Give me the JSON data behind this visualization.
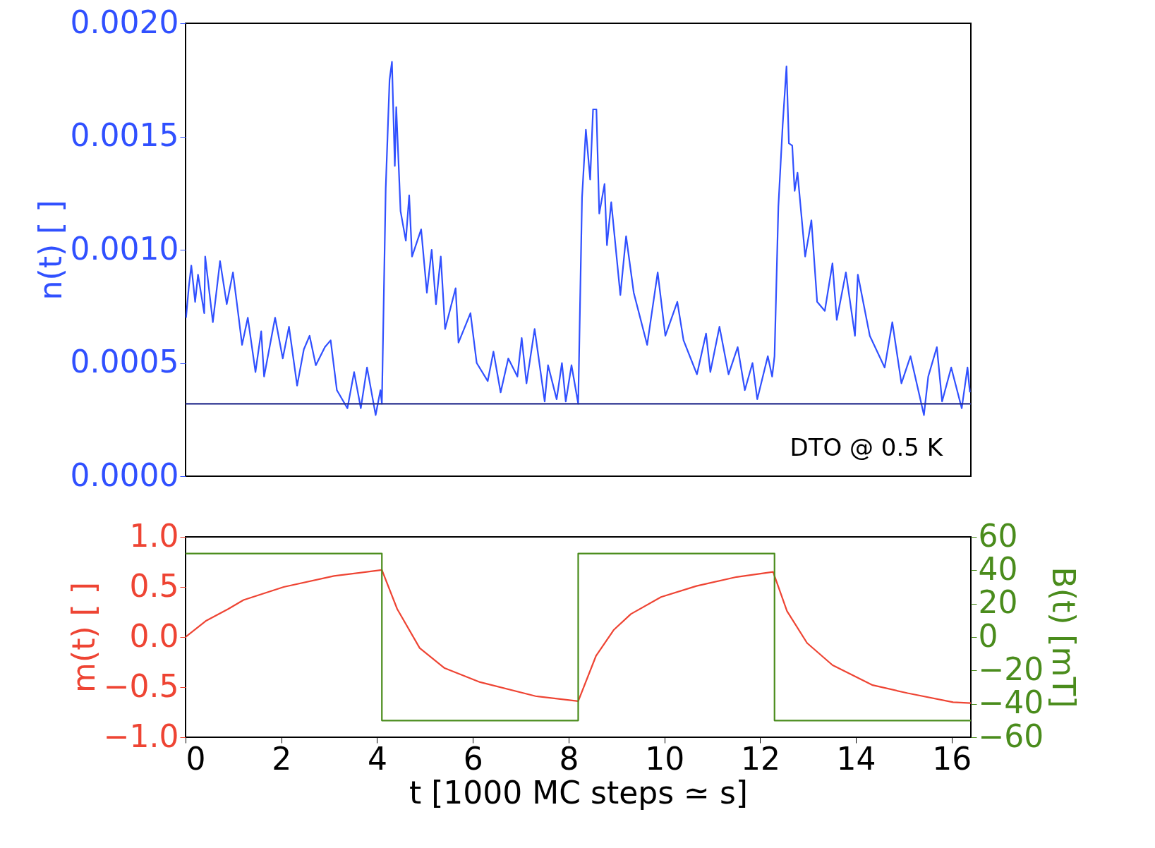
{
  "chart_data": [
    {
      "type": "line",
      "ylabel": "n(t) [ ]",
      "tick_labels": "y",
      "x": [
        0.01,
        0.07,
        0.12,
        0.2,
        0.26,
        0.39,
        0.41,
        0.57,
        0.72,
        0.86,
        0.99,
        1.11,
        1.18,
        1.3,
        1.46,
        1.58,
        1.64,
        1.87,
        2.03,
        2.16,
        2.33,
        2.47,
        2.59,
        2.72,
        2.91,
        3.03,
        3.16,
        3.38,
        3.52,
        3.66,
        3.79,
        3.97,
        4.07,
        4.1,
        4.18,
        4.26,
        4.31,
        4.37,
        4.4,
        4.49,
        4.6,
        4.67,
        4.73,
        4.92,
        5.04,
        5.14,
        5.23,
        5.33,
        5.42,
        5.64,
        5.7,
        5.95,
        6.08,
        6.31,
        6.43,
        6.58,
        6.74,
        6.93,
        7.02,
        7.12,
        7.29,
        7.5,
        7.57,
        7.75,
        7.86,
        7.94,
        8.06,
        8.2,
        8.28,
        8.36,
        8.45,
        8.51,
        8.58,
        8.64,
        8.75,
        8.8,
        8.89,
        9.08,
        9.2,
        9.36,
        9.64,
        9.86,
        10.02,
        10.27,
        10.4,
        10.68,
        10.87,
        10.96,
        11.15,
        11.34,
        11.53,
        11.68,
        11.84,
        11.94,
        12.16,
        12.25,
        12.3,
        12.38,
        12.47,
        12.55,
        12.6,
        12.67,
        12.72,
        12.78,
        12.94,
        13.07,
        13.19,
        13.35,
        13.51,
        13.6,
        13.79,
        13.98,
        14.04,
        14.29,
        14.6,
        14.76,
        14.95,
        15.14,
        15.42,
        15.51,
        15.69,
        15.8,
        15.99,
        16.21,
        16.33,
        16.38
      ],
      "series": [
        {
          "color": "#3050ff",
          "values": [
            0.0007,
            0.00084,
            0.00093,
            0.00077,
            0.00089,
            0.00072,
            0.00097,
            0.00068,
            0.00095,
            0.00076,
            0.0009,
            0.0007,
            0.00058,
            0.0007,
            0.00046,
            0.00064,
            0.00044,
            0.0007,
            0.00052,
            0.00066,
            0.0004,
            0.00056,
            0.00062,
            0.00049,
            0.00057,
            0.0006,
            0.00038,
            0.0003,
            0.00046,
            0.0003,
            0.00048,
            0.00027,
            0.00038,
            0.00032,
            0.00127,
            0.00175,
            0.00183,
            0.00137,
            0.00163,
            0.00117,
            0.00104,
            0.00124,
            0.00097,
            0.00109,
            0.00081,
            0.001,
            0.00076,
            0.00097,
            0.00065,
            0.00083,
            0.00059,
            0.00072,
            0.0005,
            0.00042,
            0.00055,
            0.00037,
            0.00052,
            0.00044,
            0.00061,
            0.00041,
            0.00065,
            0.00033,
            0.00049,
            0.00034,
            0.0005,
            0.00033,
            0.00049,
            0.00032,
            0.00123,
            0.00153,
            0.00131,
            0.00162,
            0.00162,
            0.00116,
            0.00129,
            0.00102,
            0.00121,
            0.0008,
            0.00106,
            0.00081,
            0.00058,
            0.0009,
            0.00062,
            0.00077,
            0.0006,
            0.00045,
            0.00063,
            0.00046,
            0.00066,
            0.00045,
            0.00057,
            0.00038,
            0.0005,
            0.00034,
            0.00053,
            0.00044,
            0.00053,
            0.00119,
            0.00155,
            0.00181,
            0.00147,
            0.00146,
            0.00126,
            0.00134,
            0.00097,
            0.00113,
            0.00077,
            0.00073,
            0.00094,
            0.00069,
            0.0009,
            0.00062,
            0.00089,
            0.00062,
            0.00048,
            0.00068,
            0.00041,
            0.00053,
            0.00027,
            0.00044,
            0.00057,
            0.00033,
            0.00048,
            0.0003,
            0.00048,
            0.00037
          ]
        }
      ],
      "xlim": [
        0,
        16.4
      ],
      "ylim": [
        0,
        0.002
      ],
      "yticks": [
        {
          "value": 0,
          "label": "0.0000"
        },
        {
          "value": 0.0005,
          "label": "0.0005"
        },
        {
          "value": 0.001,
          "label": "0.0010"
        },
        {
          "value": 0.0015,
          "label": "0.0015"
        },
        {
          "value": 0.002,
          "label": "0.0020"
        }
      ],
      "ref_lines": [
        {
          "axis": "y",
          "value": 0.00032,
          "color": "#28308f"
        }
      ],
      "annotations": [
        "DTO @ 0.5 K"
      ]
    },
    {
      "type": "line",
      "xlabel": "t [1000 MC steps ≃ s]",
      "ylabel": "m(t) [ ]",
      "y2label": "B(t) [mT]",
      "series": [
        {
          "color": "#ee4433",
          "x": [
            0,
            0.42,
            0.89,
            1.21,
            2.05,
            3.1,
            4.1,
            4.42,
            4.89,
            5.41,
            6.15,
            7.31,
            8.2,
            8.57,
            8.94,
            9.3,
            9.93,
            10.67,
            11.51,
            12.27,
            12.56,
            12.98,
            13.51,
            14.35,
            15.08,
            16.03,
            16.4
          ],
          "values": [
            0,
            0.16,
            0.28,
            0.37,
            0.5,
            0.61,
            0.67,
            0.28,
            -0.11,
            -0.31,
            -0.45,
            -0.59,
            -0.64,
            -0.19,
            0.07,
            0.23,
            0.4,
            0.51,
            0.6,
            0.65,
            0.26,
            -0.06,
            -0.28,
            -0.48,
            -0.56,
            -0.65,
            -0.66
          ]
        },
        {
          "color": "#4a8c1c",
          "axis": "y2",
          "x": [
            0,
            4.1,
            4.1,
            8.2,
            8.2,
            12.3,
            12.3,
            16.4
          ],
          "values": [
            50,
            50,
            -50,
            -50,
            50,
            50,
            -50,
            -50
          ]
        }
      ],
      "xlim": [
        0,
        16.4
      ],
      "xticks": [
        0,
        2,
        4,
        6,
        8,
        10,
        12,
        14,
        16
      ],
      "ylim": [
        -1,
        1
      ],
      "yticks": [
        {
          "value": -1,
          "label": "−1.0"
        },
        {
          "value": -0.5,
          "label": "−0.5"
        },
        {
          "value": 0,
          "label": "0.0"
        },
        {
          "value": 0.5,
          "label": "0.5"
        },
        {
          "value": 1,
          "label": "1.0"
        }
      ],
      "y2lim": [
        -60,
        60
      ],
      "y2ticks": [
        {
          "value": -60,
          "label": "−60"
        },
        {
          "value": -40,
          "label": "−40"
        },
        {
          "value": -20,
          "label": "−20"
        },
        0,
        20,
        40,
        60
      ]
    }
  ]
}
